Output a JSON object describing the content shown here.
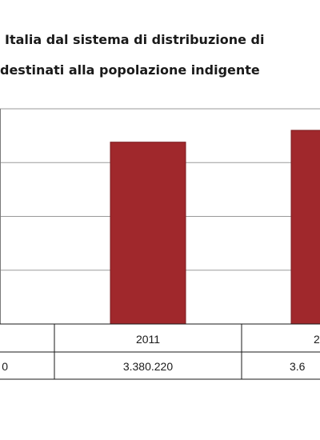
{
  "chart_data": {
    "type": "bar",
    "title_lines": [
      "Italia dal sistema di distribuzione di",
      "destinati alla popolazione indigente"
    ],
    "categories": [
      "",
      "2011",
      "2"
    ],
    "values": [
      null,
      3380220,
      3600000
    ],
    "table_values": [
      "0",
      "3.380.220",
      "3.6"
    ],
    "bar_color": "#a0282c",
    "grid": true,
    "ylim": [
      0,
      4000000
    ]
  }
}
